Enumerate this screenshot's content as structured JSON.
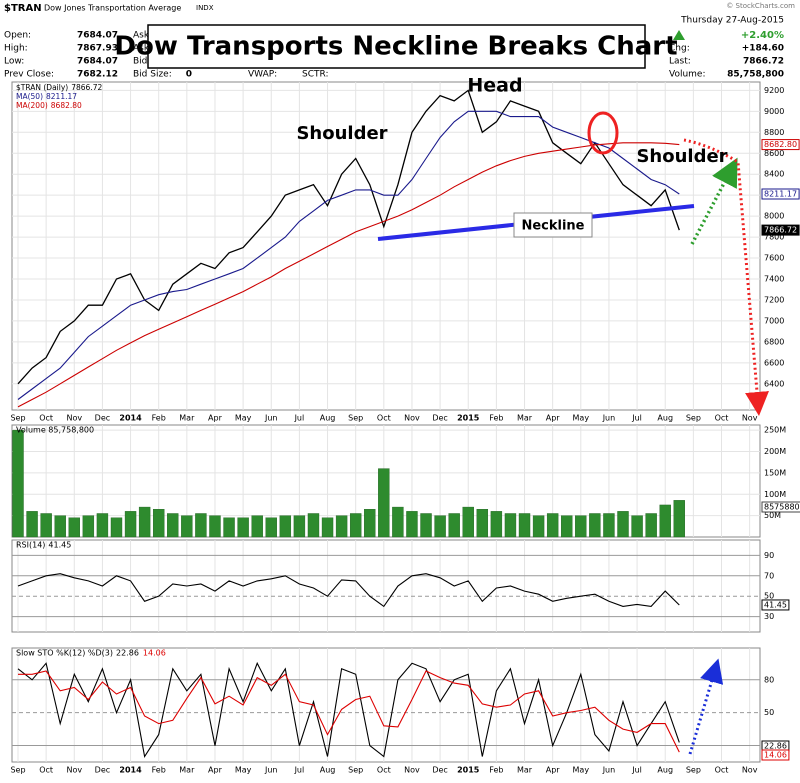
{
  "header": {
    "symbol": "$TRAN",
    "name": "Dow Jones Transportation Average",
    "exchange": "INDX",
    "quote_left": [
      {
        "label": "Open:",
        "value": "7684.07"
      },
      {
        "label": "High:",
        "value": "7867.93"
      },
      {
        "label": "Low:",
        "value": "7684.07"
      },
      {
        "label": "Prev Close:",
        "value": "7682.12"
      }
    ],
    "col2": [
      "Ask",
      "Ask",
      "Bid"
    ],
    "bid_size": {
      "label": "Bid Size:",
      "value": "0"
    },
    "vwap": "VWAP:",
    "sctr": "SCTR:",
    "date": "Thursday 27-Aug-2015",
    "change_pct": "+2.40%",
    "quote_right": [
      {
        "label": "Chg:",
        "value": "+184.60"
      },
      {
        "label": "Last:",
        "value": "7866.72"
      },
      {
        "label": "Volume:",
        "value": "85,758,800"
      }
    ],
    "credit": "© StockCharts.com"
  },
  "chart_data": [
    {
      "type": "line",
      "title": "Dow Transports Neckline Breaks Chart",
      "annotations": [
        "Head",
        "Shoulder",
        "Shoulder",
        "Neckline"
      ],
      "categories": [
        "Sep",
        null,
        "Oct",
        null,
        "Nov",
        null,
        "Dec",
        null,
        "2014",
        null,
        "Feb",
        null,
        "Mar",
        null,
        "Apr",
        null,
        "May",
        null,
        "Jun",
        null,
        "Jul",
        null,
        "Aug",
        null,
        "Sep",
        null,
        "Oct",
        null,
        "Nov",
        null,
        "Dec",
        null,
        "2015",
        null,
        "Feb",
        null,
        "Mar",
        null,
        "Apr",
        null,
        "May",
        null,
        "Jun",
        null,
        "Jul",
        null,
        "Aug",
        null,
        "Sep",
        null,
        "Oct",
        null,
        "Nov",
        null
      ],
      "series": [
        {
          "name": "$TRAN (Daily)",
          "last_label": "7866.72",
          "color": "#000000",
          "values": [
            6400,
            6550,
            6650,
            6900,
            7000,
            7150,
            7150,
            7400,
            7450,
            7200,
            7100,
            7350,
            7450,
            7550,
            7500,
            7650,
            7700,
            7850,
            8000,
            8200,
            8250,
            8300,
            8100,
            8400,
            8550,
            8300,
            7900,
            8300,
            8800,
            9000,
            9150,
            9100,
            9200,
            8800,
            8900,
            9100,
            9050,
            9000,
            8700,
            8600,
            8500,
            8700,
            8500,
            8300,
            8200,
            8100,
            8250,
            7866.72,
            null,
            null,
            null,
            null,
            null,
            null
          ]
        },
        {
          "name": "MA(50)",
          "last_label": "8211.17",
          "color": "#1a1a8c",
          "values": [
            6250,
            6350,
            6450,
            6550,
            6700,
            6850,
            6950,
            7050,
            7150,
            7200,
            7250,
            7280,
            7300,
            7350,
            7400,
            7450,
            7500,
            7600,
            7700,
            7800,
            7950,
            8050,
            8150,
            8200,
            8250,
            8250,
            8200,
            8200,
            8350,
            8550,
            8750,
            8900,
            9000,
            9000,
            9000,
            8950,
            8950,
            8950,
            8850,
            8800,
            8750,
            8700,
            8650,
            8550,
            8450,
            8350,
            8300,
            8211.17,
            null,
            null,
            null,
            null,
            null,
            null
          ]
        },
        {
          "name": "MA(200)",
          "last_label": "8682.80",
          "color": "#cc0000",
          "values": [
            6180,
            6250,
            6320,
            6400,
            6480,
            6560,
            6640,
            6720,
            6790,
            6860,
            6920,
            6980,
            7040,
            7100,
            7160,
            7220,
            7280,
            7350,
            7420,
            7500,
            7570,
            7640,
            7710,
            7780,
            7850,
            7900,
            7950,
            8000,
            8060,
            8130,
            8200,
            8280,
            8350,
            8420,
            8480,
            8530,
            8570,
            8600,
            8620,
            8640,
            8660,
            8680,
            8690,
            8700,
            8700,
            8700,
            8695,
            8682.8,
            null,
            null,
            null,
            null,
            null,
            null
          ]
        }
      ],
      "ylim": [
        6150,
        9280
      ],
      "yticks": [
        6400,
        6600,
        6800,
        7000,
        7200,
        7400,
        7600,
        7800,
        8000,
        8200,
        8400,
        8600,
        8800,
        9000,
        9200
      ],
      "grid": true
    },
    {
      "type": "bar",
      "title": "Volume 85,758,800",
      "last_label": "85758800",
      "color": "#2e8b2e",
      "values": [
        250,
        60,
        55,
        50,
        45,
        50,
        55,
        45,
        60,
        70,
        65,
        55,
        50,
        55,
        50,
        45,
        45,
        50,
        45,
        50,
        50,
        55,
        45,
        50,
        55,
        65,
        160,
        70,
        60,
        55,
        50,
        55,
        70,
        65,
        60,
        55,
        55,
        50,
        55,
        50,
        50,
        55,
        55,
        60,
        50,
        55,
        75,
        85.76
      ],
      "ylim": [
        0,
        262
      ],
      "yticks": [
        {
          "value": 50,
          "label": "50M"
        },
        {
          "value": 100,
          "label": "100M"
        },
        {
          "value": 150,
          "label": "150M"
        },
        {
          "value": 200,
          "label": "200M"
        },
        {
          "value": 250,
          "label": "250M"
        }
      ]
    },
    {
      "type": "line",
      "title": "RSI(14)",
      "series": [
        {
          "last_label": "41.45",
          "color": "#000000",
          "values": [
            60,
            65,
            70,
            72,
            68,
            65,
            60,
            70,
            65,
            45,
            50,
            62,
            60,
            62,
            55,
            65,
            60,
            65,
            67,
            70,
            62,
            58,
            50,
            66,
            65,
            50,
            40,
            60,
            70,
            72,
            68,
            60,
            65,
            45,
            58,
            60,
            55,
            52,
            45,
            48,
            50,
            52,
            45,
            40,
            42,
            40,
            55,
            41.45
          ]
        }
      ],
      "ylim": [
        15,
        105
      ],
      "yticks": [
        30,
        50,
        70,
        90
      ]
    },
    {
      "type": "line",
      "title": "Slow STO %K(12) %D(3)",
      "categories": [
        "Sep",
        null,
        "Oct",
        null,
        "Nov",
        null,
        "Dec",
        null,
        "2014",
        null,
        "Feb",
        null,
        "Mar",
        null,
        "Apr",
        null,
        "May",
        null,
        "Jun",
        null,
        "Jul",
        null,
        "Aug",
        null,
        "Sep",
        null,
        "Oct",
        null,
        "Nov",
        null,
        "Dec",
        null,
        "2015",
        null,
        "Feb",
        null,
        "Mar",
        null,
        "Apr",
        null,
        "May",
        null,
        "Jun",
        null,
        "Jul",
        null,
        "Aug",
        null,
        "Sep",
        null,
        "Oct",
        null,
        "Nov",
        null
      ],
      "series": [
        {
          "last_label": "22.86",
          "color": "#000000",
          "values": [
            90,
            80,
            95,
            40,
            85,
            60,
            90,
            50,
            80,
            10,
            30,
            90,
            70,
            85,
            20,
            90,
            60,
            95,
            70,
            90,
            20,
            60,
            10,
            90,
            85,
            20,
            10,
            80,
            95,
            90,
            60,
            80,
            85,
            10,
            70,
            90,
            40,
            80,
            20,
            50,
            85,
            30,
            15,
            60,
            20,
            40,
            60,
            22.86,
            null,
            null,
            null,
            null,
            null,
            null
          ]
        },
        {
          "last_label": "14.06",
          "color": "#dd0000",
          "values": [
            85,
            85,
            88,
            70,
            73,
            62,
            78,
            67,
            73,
            47,
            40,
            43,
            63,
            82,
            58,
            65,
            57,
            82,
            75,
            85,
            60,
            57,
            30,
            53,
            62,
            65,
            38,
            37,
            62,
            88,
            82,
            77,
            75,
            58,
            55,
            57,
            67,
            70,
            47,
            50,
            52,
            55,
            43,
            35,
            32,
            40,
            40,
            14.06,
            null,
            null,
            null,
            null,
            null,
            null
          ]
        }
      ],
      "ylim": [
        5,
        109
      ],
      "yticks": [
        20,
        50,
        80
      ]
    }
  ]
}
